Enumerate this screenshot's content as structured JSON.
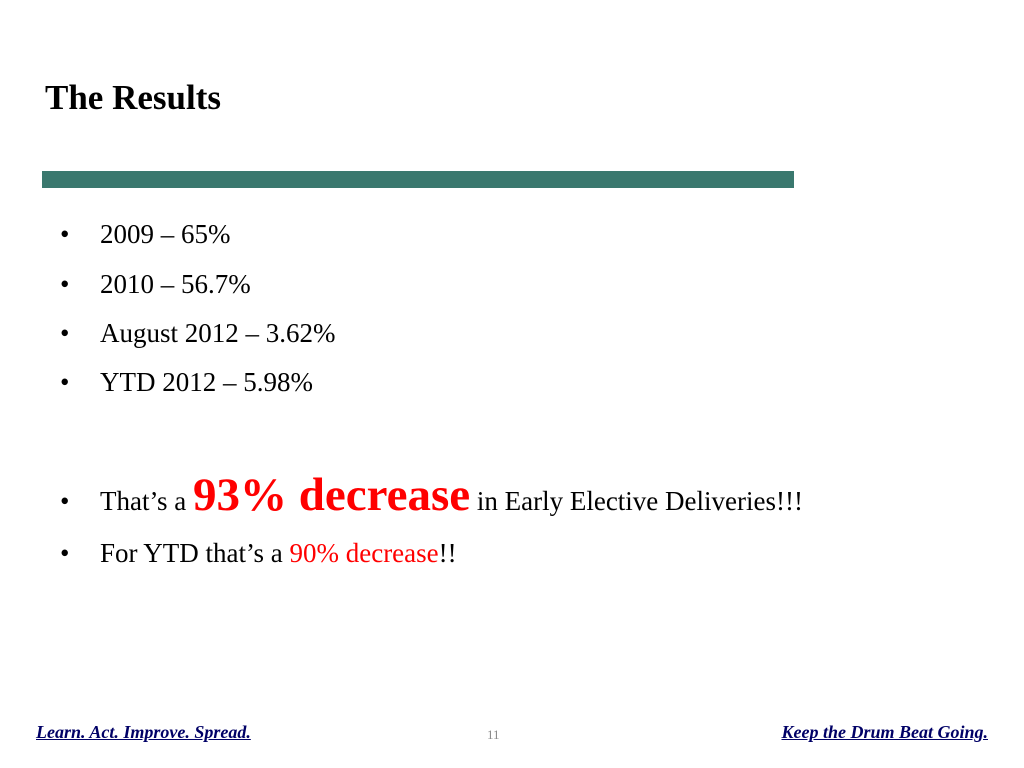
{
  "slide": {
    "title": "The Results",
    "accent_color": "#3a786e",
    "emphasis_color": "#ff0000"
  },
  "bullets": [
    {
      "text": "2009 – 65%"
    },
    {
      "text": "2010 – 56.7%"
    },
    {
      "text": "August 2012 – 3.62%"
    },
    {
      "text": "YTD 2012 – 5.98%"
    },
    {
      "prefix": "That’s a ",
      "emphasis": "93% decrease",
      "suffix": " in Early Elective Deliveries!!!"
    },
    {
      "prefix": "For YTD that’s a ",
      "emphasis": "90% decrease",
      "suffix": "!!"
    }
  ],
  "footer": {
    "left_text": "Learn. Act. Improve. Spread.",
    "page_number": "11",
    "right_text": "Keep the Drum Beat Going."
  }
}
